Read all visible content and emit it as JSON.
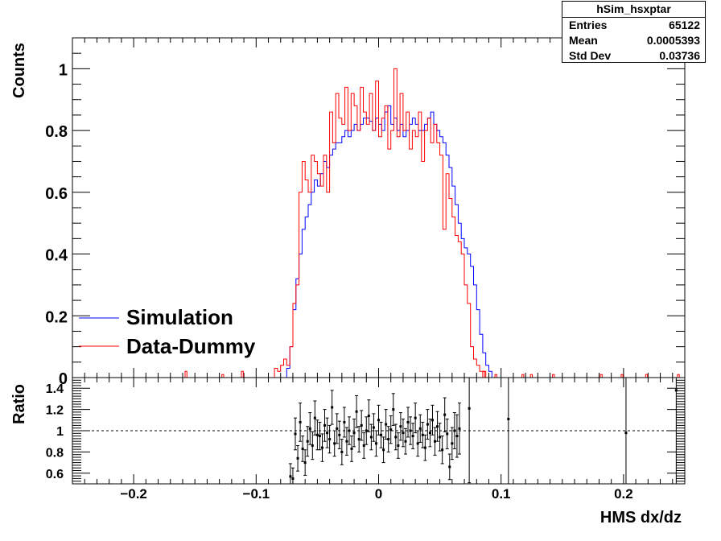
{
  "stats_box": {
    "title": "hSim_hsxptar",
    "rows": [
      {
        "label": "Entries",
        "value": "65122"
      },
      {
        "label": "Mean",
        "value": "0.0005393"
      },
      {
        "label": "Std Dev",
        "value": "0.03736"
      }
    ]
  },
  "chart_data": [
    {
      "type": "histogram",
      "panel": "main",
      "ylabel": "Counts",
      "xlim": [
        -0.25,
        0.25
      ],
      "ylim": [
        0,
        1.1
      ],
      "yticks": [
        "0",
        "0.2",
        "0.4",
        "0.6",
        "0.8",
        "1"
      ],
      "legend": {
        "placement": "left",
        "entries": [
          {
            "label": "Simulation",
            "color": "#0000ff"
          },
          {
            "label": "Data-Dummy",
            "color": "#ff0000"
          }
        ]
      },
      "bin_width": 0.0025,
      "series": [
        {
          "name": "Simulation",
          "color": "#0000ff",
          "bin_lo": -0.075,
          "values": [
            0.03,
            0.1,
            0.22,
            0.32,
            0.4,
            0.48,
            0.52,
            0.56,
            0.6,
            0.64,
            0.62,
            0.66,
            0.7,
            0.68,
            0.72,
            0.74,
            0.76,
            0.76,
            0.78,
            0.8,
            0.78,
            0.8,
            0.82,
            0.8,
            0.82,
            0.84,
            0.84,
            0.83,
            0.8,
            0.84,
            0.82,
            0.8,
            0.86,
            0.88,
            0.82,
            0.84,
            0.8,
            0.82,
            0.78,
            0.8,
            0.82,
            0.84,
            0.82,
            0.8,
            0.8,
            0.82,
            0.84,
            0.86,
            0.82,
            0.8,
            0.78,
            0.76,
            0.72,
            0.68,
            0.62,
            0.56,
            0.5,
            0.45,
            0.42,
            0.4,
            0.36,
            0.3,
            0.22,
            0.14,
            0.08,
            0.04,
            0.02
          ]
        },
        {
          "name": "Data-Dummy",
          "color": "#ff0000",
          "bin_lo": -0.085,
          "values": [
            0.03,
            0.02,
            0.04,
            0.06,
            0.04,
            0.1,
            0.24,
            0.3,
            0.6,
            0.7,
            0.64,
            0.6,
            0.72,
            0.7,
            0.66,
            0.62,
            0.72,
            0.6,
            0.86,
            0.76,
            0.92,
            0.84,
            0.82,
            0.94,
            0.8,
            0.92,
            0.88,
            0.8,
            0.94,
            0.86,
            0.82,
            0.92,
            0.8,
            0.96,
            0.78,
            0.84,
            0.88,
            0.74,
            0.8,
            1.0,
            0.78,
            0.92,
            0.8,
            0.86,
            0.74,
            0.8,
            0.78,
            0.86,
            0.7,
            0.8,
            0.84,
            0.76,
            0.82,
            0.76,
            0.72,
            0.48,
            0.66,
            0.58,
            0.52,
            0.46,
            0.44,
            0.4,
            0.3,
            0.24,
            0.1,
            0.06,
            0.04,
            0.02,
            0.02
          ]
        },
        {
          "name": "",
          "color": "#ff0000",
          "sparse_bins": [
            [
              -0.158,
              0.02
            ],
            [
              -0.128,
              0.01
            ],
            [
              -0.112,
              0.02
            ],
            [
              0.085,
              0.02
            ],
            [
              0.095,
              0.01
            ],
            [
              0.117,
              0.01
            ],
            [
              0.124,
              0.01
            ],
            [
              0.142,
              0.01
            ],
            [
              0.181,
              0.01
            ],
            [
              0.198,
              0.01
            ],
            [
              0.218,
              0.01
            ],
            [
              0.244,
              0.01
            ]
          ]
        }
      ]
    },
    {
      "type": "scatter",
      "panel": "ratio",
      "ylabel": "Ratio",
      "xlabel": "HMS dx/dz",
      "xlim": [
        -0.25,
        0.25
      ],
      "ylim": [
        0.5,
        1.5
      ],
      "yticks": [
        "0.6",
        "0.8",
        "1",
        "1.2",
        "1.4"
      ],
      "xticks": [
        "−0.2",
        "−0.1",
        "0",
        "0.1",
        "0.2"
      ],
      "reference_line": 1,
      "points": [
        {
          "x": -0.072,
          "y": 0.57,
          "e": 0.12
        },
        {
          "x": -0.07,
          "y": 0.55,
          "e": 0.1
        },
        {
          "x": -0.068,
          "y": 0.97,
          "e": 0.15
        },
        {
          "x": -0.066,
          "y": 0.74,
          "e": 0.12
        },
        {
          "x": -0.064,
          "y": 1.08,
          "e": 0.18
        },
        {
          "x": -0.062,
          "y": 0.83,
          "e": 0.12
        },
        {
          "x": -0.06,
          "y": 0.7,
          "e": 0.12
        },
        {
          "x": -0.058,
          "y": 0.9,
          "e": 0.14
        },
        {
          "x": -0.056,
          "y": 1.02,
          "e": 0.15
        },
        {
          "x": -0.054,
          "y": 0.86,
          "e": 0.13
        },
        {
          "x": -0.052,
          "y": 1.12,
          "e": 0.16
        },
        {
          "x": -0.05,
          "y": 0.96,
          "e": 0.14
        },
        {
          "x": -0.048,
          "y": 0.95,
          "e": 0.13
        },
        {
          "x": -0.046,
          "y": 0.84,
          "e": 0.13
        },
        {
          "x": -0.044,
          "y": 1.05,
          "e": 0.15
        },
        {
          "x": -0.042,
          "y": 0.98,
          "e": 0.14
        },
        {
          "x": -0.04,
          "y": 0.92,
          "e": 0.13
        },
        {
          "x": -0.038,
          "y": 1.22,
          "e": 0.16
        },
        {
          "x": -0.036,
          "y": 0.88,
          "e": 0.12
        },
        {
          "x": -0.034,
          "y": 1.02,
          "e": 0.14
        },
        {
          "x": -0.032,
          "y": 0.96,
          "e": 0.13
        },
        {
          "x": -0.03,
          "y": 0.8,
          "e": 0.12
        },
        {
          "x": -0.028,
          "y": 1.08,
          "e": 0.14
        },
        {
          "x": -0.026,
          "y": 0.9,
          "e": 0.13
        },
        {
          "x": -0.024,
          "y": 1.0,
          "e": 0.13
        },
        {
          "x": -0.022,
          "y": 0.83,
          "e": 0.12
        },
        {
          "x": -0.02,
          "y": 0.98,
          "e": 0.13
        },
        {
          "x": -0.018,
          "y": 1.18,
          "e": 0.15
        },
        {
          "x": -0.016,
          "y": 0.92,
          "e": 0.12
        },
        {
          "x": -0.014,
          "y": 1.05,
          "e": 0.14
        },
        {
          "x": -0.012,
          "y": 0.86,
          "e": 0.12
        },
        {
          "x": -0.01,
          "y": 1.0,
          "e": 0.13
        },
        {
          "x": -0.008,
          "y": 1.14,
          "e": 0.15
        },
        {
          "x": -0.006,
          "y": 0.94,
          "e": 0.12
        },
        {
          "x": -0.004,
          "y": 1.03,
          "e": 0.13
        },
        {
          "x": -0.002,
          "y": 0.88,
          "e": 0.12
        },
        {
          "x": 0.0,
          "y": 1.1,
          "e": 0.14
        },
        {
          "x": 0.002,
          "y": 0.96,
          "e": 0.12
        },
        {
          "x": 0.004,
          "y": 0.82,
          "e": 0.12
        },
        {
          "x": 0.006,
          "y": 1.06,
          "e": 0.14
        },
        {
          "x": 0.008,
          "y": 0.92,
          "e": 0.12
        },
        {
          "x": 0.01,
          "y": 1.01,
          "e": 0.13
        },
        {
          "x": 0.012,
          "y": 1.2,
          "e": 0.15
        },
        {
          "x": 0.014,
          "y": 0.94,
          "e": 0.12
        },
        {
          "x": 0.016,
          "y": 0.86,
          "e": 0.12
        },
        {
          "x": 0.018,
          "y": 1.04,
          "e": 0.13
        },
        {
          "x": 0.02,
          "y": 0.98,
          "e": 0.13
        },
        {
          "x": 0.022,
          "y": 0.9,
          "e": 0.12
        },
        {
          "x": 0.024,
          "y": 1.08,
          "e": 0.14
        },
        {
          "x": 0.026,
          "y": 1.0,
          "e": 0.13
        },
        {
          "x": 0.028,
          "y": 0.95,
          "e": 0.12
        },
        {
          "x": 0.03,
          "y": 1.12,
          "e": 0.14
        },
        {
          "x": 0.032,
          "y": 0.88,
          "e": 0.12
        },
        {
          "x": 0.034,
          "y": 1.02,
          "e": 0.13
        },
        {
          "x": 0.036,
          "y": 0.96,
          "e": 0.12
        },
        {
          "x": 0.038,
          "y": 0.84,
          "e": 0.12
        },
        {
          "x": 0.04,
          "y": 1.06,
          "e": 0.14
        },
        {
          "x": 0.042,
          "y": 0.98,
          "e": 0.13
        },
        {
          "x": 0.044,
          "y": 1.1,
          "e": 0.14
        },
        {
          "x": 0.046,
          "y": 0.9,
          "e": 0.13
        },
        {
          "x": 0.048,
          "y": 1.04,
          "e": 0.14
        },
        {
          "x": 0.05,
          "y": 0.94,
          "e": 0.13
        },
        {
          "x": 0.052,
          "y": 0.82,
          "e": 0.13
        },
        {
          "x": 0.054,
          "y": 1.15,
          "e": 0.16
        },
        {
          "x": 0.056,
          "y": 0.97,
          "e": 0.14
        },
        {
          "x": 0.058,
          "y": 0.66,
          "e": 0.12
        },
        {
          "x": 0.06,
          "y": 0.88,
          "e": 0.15
        },
        {
          "x": 0.062,
          "y": 1.0,
          "e": 0.17
        },
        {
          "x": 0.064,
          "y": 0.95,
          "e": 0.2
        },
        {
          "x": 0.066,
          "y": 1.02,
          "e": 0.24
        },
        {
          "x": 0.074,
          "y": 1.21,
          "e": 0.7
        },
        {
          "x": 0.106,
          "y": 1.11,
          "e": 0.7
        },
        {
          "x": 0.202,
          "y": 0.98,
          "e": 0.7
        },
        {
          "x": 0.243,
          "y": 1.38,
          "e": 0.9
        }
      ]
    }
  ]
}
